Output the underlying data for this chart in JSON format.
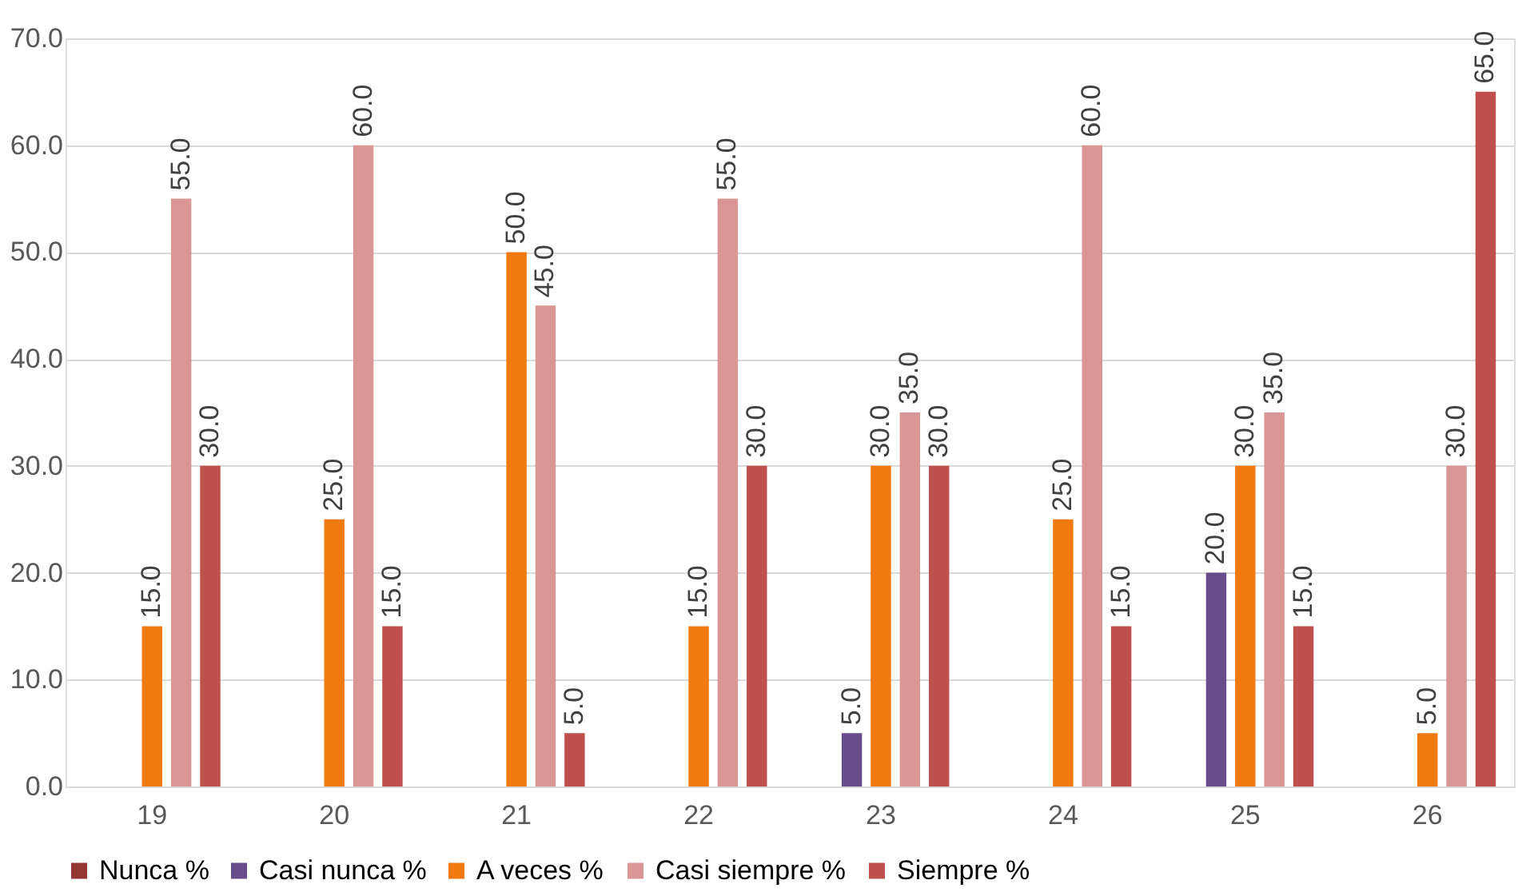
{
  "chart_data": {
    "type": "bar",
    "categories": [
      "19",
      "20",
      "21",
      "22",
      "23",
      "24",
      "25",
      "26"
    ],
    "series": [
      {
        "name": "Nunca %",
        "color": "#943634",
        "values": [
          null,
          null,
          null,
          null,
          null,
          null,
          null,
          null
        ],
        "value_labels": [
          null,
          null,
          null,
          null,
          null,
          null,
          null,
          null
        ]
      },
      {
        "name": "Casi nunca %",
        "color": "#674e8a",
        "values": [
          null,
          null,
          null,
          null,
          5,
          null,
          20,
          null
        ],
        "value_labels": [
          null,
          null,
          null,
          null,
          "5.0",
          null,
          "20.0",
          null
        ]
      },
      {
        "name": "A veces %",
        "color": "#f07a10",
        "values": [
          15,
          25,
          50,
          15,
          30,
          25,
          30,
          5
        ],
        "value_labels": [
          "15.0",
          "25.0",
          "50.0",
          "15.0",
          "30.0",
          "25.0",
          "30.0",
          "5.0"
        ]
      },
      {
        "name": "Casi siempre %",
        "color": "#d99694",
        "values": [
          55,
          60,
          45,
          55,
          35,
          60,
          35,
          30
        ],
        "value_labels": [
          "55.0",
          "60.0",
          "45.0",
          "55.0",
          "35.0",
          "60.0",
          "35.0",
          "30.0"
        ]
      },
      {
        "name": "Siempre %",
        "color": "#c0504d",
        "values": [
          30,
          15,
          5,
          30,
          30,
          15,
          15,
          65
        ],
        "value_labels": [
          "30.0",
          "15.0",
          "5.0",
          "30.0",
          "30.0",
          "15.0",
          "15.0",
          "65.0"
        ]
      }
    ],
    "ylim": [
      0,
      70
    ],
    "yticks": [
      {
        "value": 0,
        "label": "0.0"
      },
      {
        "value": 10,
        "label": "10.0"
      },
      {
        "value": 20,
        "label": "20.0"
      },
      {
        "value": 30,
        "label": "30.0"
      },
      {
        "value": 40,
        "label": "40.0"
      },
      {
        "value": 50,
        "label": "50.0"
      },
      {
        "value": 60,
        "label": "60.0"
      },
      {
        "value": 70,
        "label": "70.0"
      }
    ],
    "grid": "y",
    "legend": "bottom"
  }
}
